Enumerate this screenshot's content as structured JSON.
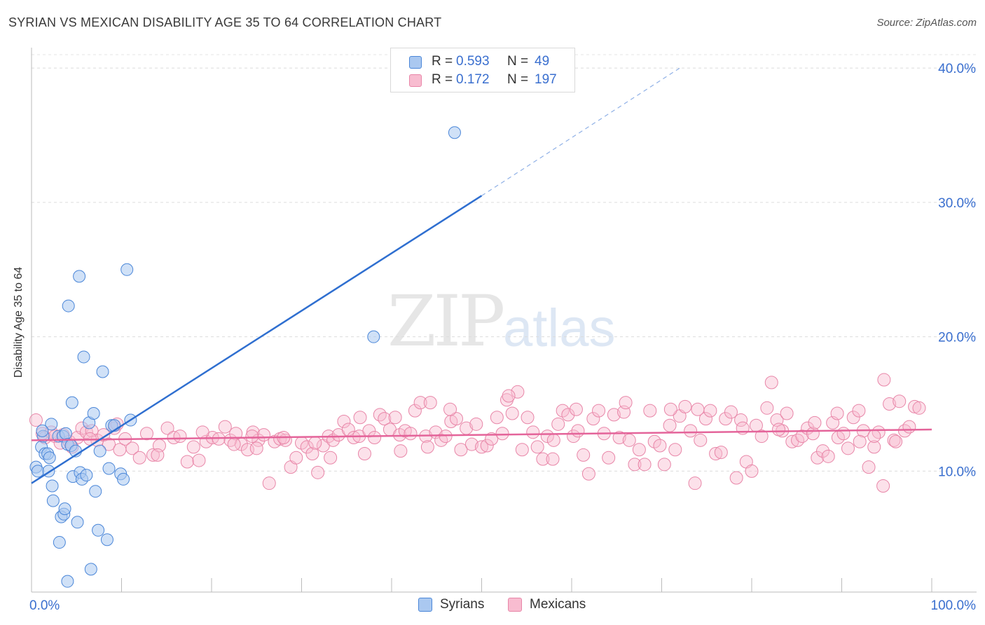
{
  "header": {
    "title": "SYRIAN VS MEXICAN DISABILITY AGE 35 TO 64 CORRELATION CHART",
    "source": "Source: ZipAtlas.com"
  },
  "watermark": {
    "part1": "ZIP",
    "part2": "atlas"
  },
  "legend": {
    "rows": [
      {
        "r_label": "R =",
        "r_value": "0.593",
        "n_label": "N =",
        "n_value": "49",
        "color": "#aac8f0"
      },
      {
        "r_label": "R =",
        "r_value": "0.172",
        "n_label": "N =",
        "n_value": "197",
        "color": "#f8bcd0"
      }
    ]
  },
  "bottom_legend": [
    {
      "label": "Syrians",
      "color": "#aac8f0"
    },
    {
      "label": "Mexicans",
      "color": "#f8bcd0"
    }
  ],
  "chart_data": {
    "type": "scatter",
    "title": "SYRIAN VS MEXICAN DISABILITY AGE 35 TO 64 CORRELATION CHART",
    "xlabel": "",
    "ylabel": "Disability Age 35 to 64",
    "xlim": [
      0,
      100
    ],
    "ylim": [
      1,
      41
    ],
    "x_tick_labels": [
      "0.0%",
      "100.0%"
    ],
    "y_ticks": [
      10,
      20,
      30,
      40
    ],
    "y_tick_labels": [
      "10.0%",
      "20.0%",
      "30.0%",
      "40.0%"
    ],
    "grid": "horizontal dashed",
    "legend_position": "top-center",
    "colors": {
      "syrians": "#4a86d8",
      "syrians_fill": "#aac8f0",
      "syrians_line": "#2f6fd0",
      "mexicans": "#e886a8",
      "mexicans_fill": "#f8bcd0",
      "mexicans_line": "#e4649a"
    },
    "series": [
      {
        "name": "Syrians",
        "trend": {
          "x": [
            0,
            50
          ],
          "y": [
            9.1,
            30.5
          ],
          "dashed_to": [
            72,
            40.0
          ]
        },
        "points": [
          [
            0.5,
            10.3
          ],
          [
            0.7,
            10.0
          ],
          [
            1.1,
            11.8
          ],
          [
            1.3,
            12.6
          ],
          [
            1.5,
            11.3
          ],
          [
            1.8,
            11.3
          ],
          [
            1.9,
            10.0
          ],
          [
            2.0,
            11.0
          ],
          [
            2.2,
            13.5
          ],
          [
            2.3,
            8.9
          ],
          [
            2.4,
            7.8
          ],
          [
            3.0,
            12.6
          ],
          [
            3.1,
            4.7
          ],
          [
            3.3,
            6.6
          ],
          [
            3.5,
            12.6
          ],
          [
            3.6,
            6.8
          ],
          [
            3.7,
            7.2
          ],
          [
            3.8,
            12.8
          ],
          [
            4.0,
            12.0
          ],
          [
            4.1,
            22.3
          ],
          [
            4.4,
            11.9
          ],
          [
            4.5,
            15.1
          ],
          [
            4.6,
            9.6
          ],
          [
            4.9,
            11.5
          ],
          [
            5.1,
            6.2
          ],
          [
            5.3,
            24.5
          ],
          [
            5.4,
            9.9
          ],
          [
            5.6,
            9.4
          ],
          [
            5.8,
            18.5
          ],
          [
            6.1,
            9.7
          ],
          [
            6.4,
            13.6
          ],
          [
            6.6,
            2.7
          ],
          [
            6.9,
            14.3
          ],
          [
            7.1,
            8.5
          ],
          [
            7.4,
            5.6
          ],
          [
            7.6,
            11.5
          ],
          [
            7.9,
            17.4
          ],
          [
            8.4,
            4.9
          ],
          [
            8.6,
            10.2
          ],
          [
            8.9,
            13.4
          ],
          [
            9.2,
            13.4
          ],
          [
            9.9,
            9.8
          ],
          [
            10.2,
            9.4
          ],
          [
            10.6,
            25.0
          ],
          [
            11.0,
            13.8
          ],
          [
            38.0,
            20.0
          ],
          [
            47.0,
            35.2
          ],
          [
            4.0,
            1.8
          ],
          [
            1.2,
            13.0
          ]
        ]
      },
      {
        "name": "Mexicans",
        "trend": {
          "x": [
            0,
            100
          ],
          "y": [
            12.3,
            13.1
          ]
        },
        "points": [
          [
            0.5,
            13.8
          ],
          [
            1.2,
            12.8
          ],
          [
            1.5,
            12.5
          ],
          [
            2.2,
            12.9
          ],
          [
            2.6,
            12.6
          ],
          [
            3.2,
            12.1
          ],
          [
            3.5,
            12.7
          ],
          [
            4.2,
            12.2
          ],
          [
            4.5,
            11.8
          ],
          [
            5.1,
            12.5
          ],
          [
            5.6,
            13.2
          ],
          [
            6.1,
            12.9
          ],
          [
            6.7,
            13.0
          ],
          [
            7.3,
            12.3
          ],
          [
            8.0,
            12.7
          ],
          [
            8.6,
            12.0
          ],
          [
            9.2,
            13.2
          ],
          [
            9.8,
            11.6
          ],
          [
            10.4,
            12.4
          ],
          [
            11.2,
            11.7
          ],
          [
            12.0,
            11.0
          ],
          [
            12.8,
            12.8
          ],
          [
            13.5,
            11.2
          ],
          [
            14.2,
            11.9
          ],
          [
            15.1,
            13.2
          ],
          [
            15.8,
            12.5
          ],
          [
            16.5,
            12.6
          ],
          [
            17.3,
            10.7
          ],
          [
            18.0,
            11.8
          ],
          [
            18.6,
            10.8
          ],
          [
            19.4,
            12.2
          ],
          [
            20.1,
            12.5
          ],
          [
            20.8,
            12.4
          ],
          [
            21.5,
            13.3
          ],
          [
            22.1,
            12.3
          ],
          [
            22.7,
            12.8
          ],
          [
            23.3,
            12.0
          ],
          [
            24.0,
            11.6
          ],
          [
            24.6,
            12.9
          ],
          [
            25.2,
            12.3
          ],
          [
            25.8,
            12.7
          ],
          [
            26.4,
            9.1
          ],
          [
            27.0,
            12.2
          ],
          [
            27.6,
            12.4
          ],
          [
            28.2,
            12.3
          ],
          [
            28.8,
            10.3
          ],
          [
            29.4,
            11.0
          ],
          [
            30.0,
            12.1
          ],
          [
            30.6,
            11.8
          ],
          [
            31.2,
            11.3
          ],
          [
            31.8,
            9.9
          ],
          [
            32.4,
            11.9
          ],
          [
            33.0,
            12.6
          ],
          [
            33.5,
            12.3
          ],
          [
            34.1,
            12.7
          ],
          [
            34.7,
            13.7
          ],
          [
            35.2,
            13.1
          ],
          [
            35.8,
            12.5
          ],
          [
            36.4,
            12.6
          ],
          [
            37.0,
            11.3
          ],
          [
            37.5,
            13.0
          ],
          [
            38.1,
            12.5
          ],
          [
            38.7,
            14.2
          ],
          [
            39.2,
            13.9
          ],
          [
            39.8,
            13.1
          ],
          [
            40.4,
            14.0
          ],
          [
            40.9,
            12.7
          ],
          [
            41.5,
            13.0
          ],
          [
            42.1,
            12.8
          ],
          [
            42.6,
            14.5
          ],
          [
            43.2,
            15.1
          ],
          [
            43.8,
            12.6
          ],
          [
            44.3,
            15.1
          ],
          [
            44.9,
            12.9
          ],
          [
            45.5,
            12.3
          ],
          [
            46.0,
            12.6
          ],
          [
            46.6,
            13.7
          ],
          [
            47.2,
            13.9
          ],
          [
            47.7,
            11.6
          ],
          [
            48.3,
            13.2
          ],
          [
            48.9,
            12.0
          ],
          [
            49.4,
            13.5
          ],
          [
            50.0,
            11.8
          ],
          [
            50.6,
            11.9
          ],
          [
            51.1,
            12.4
          ],
          [
            51.7,
            14.0
          ],
          [
            52.3,
            12.8
          ],
          [
            52.8,
            15.3
          ],
          [
            53.4,
            14.3
          ],
          [
            54.0,
            15.9
          ],
          [
            54.5,
            11.6
          ],
          [
            55.1,
            14.0
          ],
          [
            55.7,
            12.9
          ],
          [
            56.2,
            11.8
          ],
          [
            56.8,
            10.9
          ],
          [
            57.3,
            12.6
          ],
          [
            57.9,
            10.9
          ],
          [
            58.5,
            13.5
          ],
          [
            59.0,
            14.5
          ],
          [
            59.6,
            14.2
          ],
          [
            60.2,
            12.6
          ],
          [
            60.7,
            13.0
          ],
          [
            61.3,
            11.2
          ],
          [
            61.9,
            9.8
          ],
          [
            62.4,
            13.9
          ],
          [
            63.0,
            14.5
          ],
          [
            63.6,
            12.8
          ],
          [
            64.1,
            11.0
          ],
          [
            64.7,
            14.2
          ],
          [
            65.3,
            12.5
          ],
          [
            65.8,
            14.4
          ],
          [
            66.4,
            12.3
          ],
          [
            67.0,
            10.5
          ],
          [
            67.5,
            11.6
          ],
          [
            68.1,
            10.5
          ],
          [
            68.7,
            14.5
          ],
          [
            69.2,
            12.2
          ],
          [
            69.8,
            11.9
          ],
          [
            70.3,
            10.5
          ],
          [
            70.9,
            13.4
          ],
          [
            71.5,
            11.6
          ],
          [
            72.0,
            14.1
          ],
          [
            72.6,
            14.8
          ],
          [
            73.2,
            13.0
          ],
          [
            73.7,
            9.1
          ],
          [
            74.3,
            12.3
          ],
          [
            74.9,
            13.9
          ],
          [
            75.4,
            14.5
          ],
          [
            76.0,
            11.3
          ],
          [
            76.6,
            11.4
          ],
          [
            77.1,
            13.9
          ],
          [
            77.7,
            14.4
          ],
          [
            78.3,
            9.5
          ],
          [
            78.8,
            13.8
          ],
          [
            79.4,
            10.7
          ],
          [
            80.0,
            10.0
          ],
          [
            80.5,
            13.4
          ],
          [
            81.1,
            12.6
          ],
          [
            81.7,
            14.7
          ],
          [
            82.2,
            16.6
          ],
          [
            82.8,
            13.8
          ],
          [
            83.4,
            13.0
          ],
          [
            83.9,
            14.3
          ],
          [
            84.5,
            12.2
          ],
          [
            85.1,
            12.3
          ],
          [
            85.6,
            12.6
          ],
          [
            86.2,
            13.2
          ],
          [
            86.8,
            12.8
          ],
          [
            87.3,
            11.0
          ],
          [
            87.9,
            11.5
          ],
          [
            88.5,
            11.1
          ],
          [
            89.0,
            13.6
          ],
          [
            89.6,
            12.5
          ],
          [
            90.2,
            12.8
          ],
          [
            90.7,
            11.7
          ],
          [
            91.3,
            14.0
          ],
          [
            91.9,
            14.5
          ],
          [
            92.4,
            13.0
          ],
          [
            93.0,
            10.3
          ],
          [
            93.6,
            11.8
          ],
          [
            94.1,
            12.9
          ],
          [
            94.7,
            16.8
          ],
          [
            95.3,
            15.0
          ],
          [
            95.8,
            12.3
          ],
          [
            96.4,
            15.2
          ],
          [
            97.0,
            13.0
          ],
          [
            97.5,
            13.3
          ],
          [
            98.1,
            14.8
          ],
          [
            98.6,
            14.7
          ],
          [
            93.6,
            12.6
          ],
          [
            94.6,
            8.9
          ],
          [
            22.5,
            12.0
          ],
          [
            25.0,
            11.7
          ],
          [
            28.0,
            12.5
          ],
          [
            33.2,
            11.0
          ],
          [
            36.5,
            14.0
          ],
          [
            41.0,
            11.5
          ],
          [
            46.5,
            14.6
          ],
          [
            53.0,
            15.6
          ],
          [
            58.0,
            12.3
          ],
          [
            60.5,
            14.6
          ],
          [
            66.0,
            15.1
          ],
          [
            71.0,
            14.6
          ],
          [
            74.0,
            14.6
          ],
          [
            79.0,
            13.2
          ],
          [
            83.0,
            13.1
          ],
          [
            87.0,
            13.6
          ],
          [
            89.5,
            14.3
          ],
          [
            92.0,
            12.2
          ],
          [
            96.0,
            12.2
          ],
          [
            6.5,
            12.4
          ],
          [
            9.5,
            13.5
          ],
          [
            14.0,
            11.2
          ],
          [
            19.0,
            12.9
          ],
          [
            24.5,
            12.6
          ],
          [
            31.5,
            12.1
          ],
          [
            44.0,
            11.8
          ]
        ]
      }
    ]
  }
}
